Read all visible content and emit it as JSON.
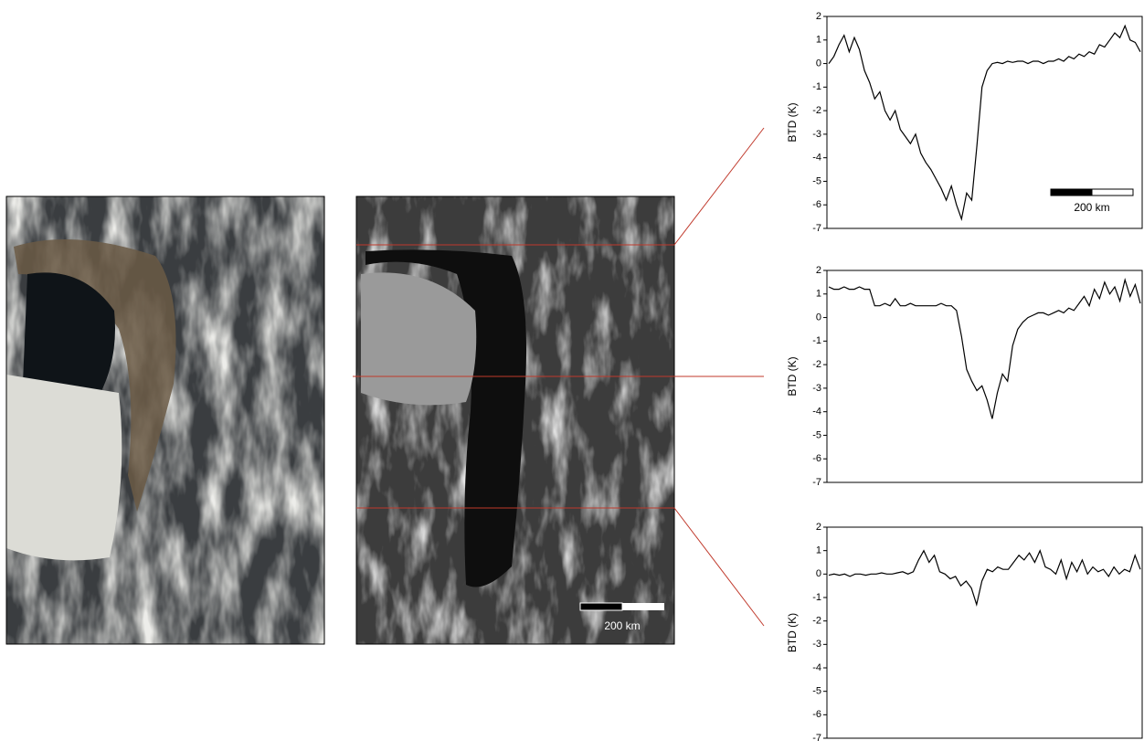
{
  "chart_data": [
    {
      "type": "line",
      "ylabel": "BTD (K)",
      "ylim": [
        -7,
        2
      ],
      "yticks": [
        -7,
        -6,
        -5,
        -4,
        -3,
        -2,
        -1,
        0,
        1,
        2
      ],
      "color": "#000000",
      "scalebar_label": "200 km",
      "values": [
        0.0,
        0.3,
        0.8,
        1.2,
        0.5,
        1.1,
        0.6,
        -0.3,
        -0.8,
        -1.5,
        -1.2,
        -2.0,
        -2.4,
        -2.0,
        -2.8,
        -3.1,
        -3.4,
        -3.0,
        -3.8,
        -4.2,
        -4.5,
        -4.9,
        -5.3,
        -5.8,
        -5.2,
        -6.0,
        -6.6,
        -5.5,
        -5.8,
        -3.5,
        -1.0,
        -0.3,
        0.0,
        0.05,
        0.0,
        0.1,
        0.05,
        0.1,
        0.1,
        0.0,
        0.1,
        0.1,
        0.0,
        0.1,
        0.1,
        0.2,
        0.1,
        0.3,
        0.2,
        0.4,
        0.3,
        0.5,
        0.4,
        0.8,
        0.7,
        1.0,
        1.3,
        1.1,
        1.6,
        1.0,
        0.9,
        0.5
      ]
    },
    {
      "type": "line",
      "ylabel": "BTD (K)",
      "ylim": [
        -7,
        2
      ],
      "yticks": [
        -7,
        -6,
        -5,
        -4,
        -3,
        -2,
        -1,
        0,
        1,
        2
      ],
      "color": "#000000",
      "values": [
        1.3,
        1.2,
        1.2,
        1.3,
        1.2,
        1.2,
        1.3,
        1.2,
        1.2,
        0.5,
        0.5,
        0.6,
        0.5,
        0.8,
        0.5,
        0.5,
        0.6,
        0.5,
        0.5,
        0.5,
        0.5,
        0.5,
        0.6,
        0.5,
        0.5,
        0.3,
        -0.8,
        -2.2,
        -2.7,
        -3.1,
        -2.9,
        -3.5,
        -4.3,
        -3.2,
        -2.4,
        -2.7,
        -1.2,
        -0.5,
        -0.2,
        0.0,
        0.1,
        0.2,
        0.2,
        0.1,
        0.2,
        0.3,
        0.2,
        0.4,
        0.3,
        0.6,
        0.9,
        0.5,
        1.2,
        0.8,
        1.5,
        1.0,
        1.3,
        0.7,
        1.6,
        0.9,
        1.4,
        0.6
      ]
    },
    {
      "type": "line",
      "ylabel": "BTD (K)",
      "ylim": [
        -7,
        2
      ],
      "yticks": [
        -7,
        -6,
        -5,
        -4,
        -3,
        -2,
        -1,
        0,
        1,
        2
      ],
      "color": "#000000",
      "values": [
        -0.05,
        0,
        -0.05,
        0,
        -0.1,
        0,
        0,
        -0.05,
        0,
        0,
        0.05,
        0,
        0,
        0.05,
        0.1,
        0,
        0.1,
        0.6,
        1.0,
        0.5,
        0.8,
        0.1,
        0.0,
        -0.2,
        -0.1,
        -0.5,
        -0.3,
        -0.6,
        -1.3,
        -0.3,
        0.2,
        0.1,
        0.3,
        0.2,
        0.2,
        0.5,
        0.8,
        0.6,
        0.9,
        0.5,
        1.0,
        0.3,
        0.2,
        0.0,
        0.6,
        -0.2,
        0.5,
        0.1,
        0.6,
        0.0,
        0.3,
        0.1,
        0.2,
        -0.1,
        0.3,
        0.0,
        0.2,
        0.1,
        0.8,
        0.2
      ]
    }
  ],
  "image_scalebar_label": "200 km"
}
